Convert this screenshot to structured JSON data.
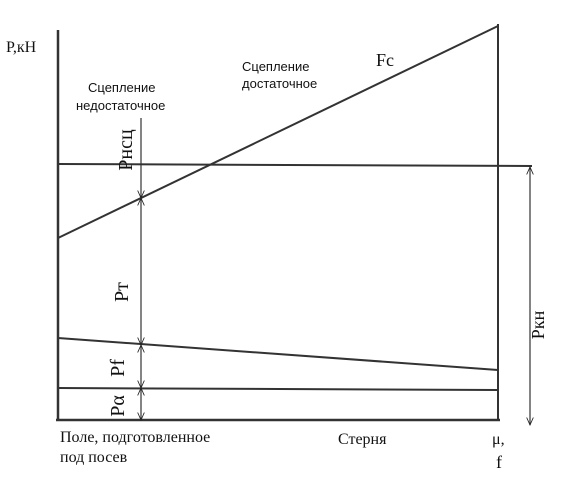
{
  "axis": {
    "y_label": "Р,кН",
    "x_end_label": [
      "μ,",
      "f"
    ]
  },
  "zones": {
    "left": {
      "title": [
        "Сцепление",
        "недостаточное"
      ],
      "ground": [
        "Поле, подготовленное",
        "под посев"
      ]
    },
    "right": {
      "title": [
        "Сцепление",
        "достаточное"
      ],
      "ground": "Стерня"
    }
  },
  "forces": {
    "fc": "Fc",
    "pnsc": "Рнсц",
    "pt": "Рт",
    "pf": "Рf",
    "pa": "Рα",
    "pkn": "Ркн"
  }
}
